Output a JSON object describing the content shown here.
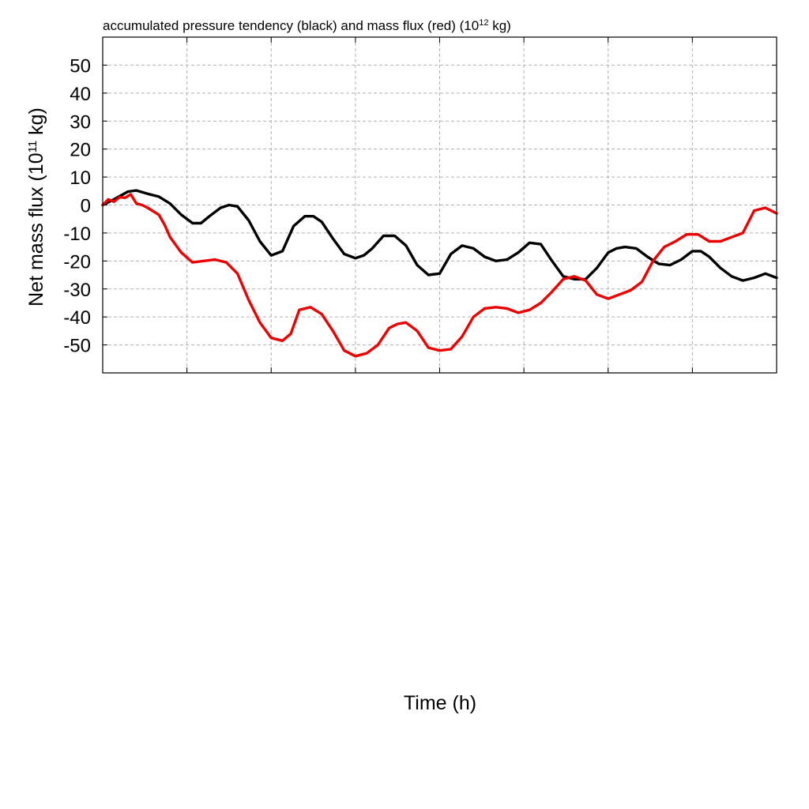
{
  "chart_data": {
    "type": "line",
    "title": {
      "main": "accumulated pressure tendency (black) and mass flux (red) (10",
      "sup": "12",
      "tail": " kg)"
    },
    "ylabel": {
      "main": "Net mass flux (10",
      "sup": "11",
      "tail": " kg)"
    },
    "xlabel": "Time (h)",
    "xlim": [
      0,
      120
    ],
    "ylim": [
      -60,
      60
    ],
    "yticks": [
      50,
      40,
      30,
      20,
      10,
      0,
      -10,
      -20,
      -30,
      -40,
      -50
    ],
    "ytick_labels": [
      "50",
      "40",
      "30",
      "20",
      "10",
      "0",
      "-10",
      "-20",
      "-30",
      "-40",
      "-50"
    ],
    "xgrid": [
      15,
      30,
      45,
      60,
      75,
      90,
      105
    ],
    "grid": true,
    "series": [
      {
        "name": "accumulated pressure tendency",
        "color": "#000000",
        "x": [
          0,
          2,
          4.5,
          6,
          8,
          10,
          12,
          14,
          16,
          17.5,
          19,
          21,
          22.5,
          24,
          26,
          28,
          30,
          32,
          34,
          36,
          37.5,
          39,
          41,
          43,
          45,
          46.5,
          48,
          50,
          52,
          54,
          56,
          58,
          60,
          62,
          64,
          66,
          68,
          70,
          72,
          74,
          76,
          78,
          80,
          82,
          84,
          86,
          88,
          90,
          91.5,
          93,
          95,
          97,
          99,
          101,
          103,
          105,
          106.5,
          108,
          110,
          112,
          114,
          116,
          118,
          120
        ],
        "y": [
          0,
          2,
          4.8,
          5.2,
          4,
          3,
          0.5,
          -3.5,
          -6.5,
          -6.5,
          -4,
          -1,
          0,
          -0.5,
          -5.5,
          -13,
          -18,
          -16.5,
          -7.5,
          -4,
          -4,
          -6,
          -12,
          -17.5,
          -19,
          -18,
          -15.5,
          -11,
          -11,
          -14.5,
          -21.5,
          -25,
          -24.5,
          -17.5,
          -14.5,
          -15.5,
          -18.5,
          -20,
          -19.5,
          -17,
          -13.5,
          -14,
          -20,
          -25.5,
          -26.5,
          -26.5,
          -22.5,
          -17,
          -15.5,
          -15,
          -15.5,
          -18.5,
          -21,
          -21.5,
          -19.5,
          -16.5,
          -16.5,
          -18.5,
          -22.5,
          -25.5,
          -27,
          -26,
          -24.5,
          -26
        ]
      },
      {
        "name": "mass flux",
        "color": "#ee0000",
        "x": [
          0,
          1,
          2,
          3,
          4,
          5,
          6,
          7,
          8,
          10,
          11,
          12,
          14,
          16,
          18,
          20,
          22,
          24,
          26,
          28,
          30,
          32,
          33.5,
          35,
          37,
          39,
          41,
          43,
          45,
          47,
          49,
          51,
          52.5,
          54,
          56,
          58,
          60,
          62,
          64,
          66,
          68,
          70,
          72,
          74,
          76,
          78,
          80,
          82,
          84,
          86,
          88,
          90,
          92,
          94,
          96,
          98,
          100,
          102,
          104,
          106,
          108,
          110,
          112,
          114,
          116,
          118,
          120
        ],
        "y": [
          0,
          2,
          1.2,
          2.8,
          2.6,
          3.8,
          0.5,
          0,
          -1,
          -3.5,
          -7,
          -11.5,
          -17,
          -20.5,
          -20,
          -19.5,
          -20.5,
          -24.5,
          -34,
          -42,
          -47.5,
          -48.5,
          -46,
          -37.5,
          -36.5,
          -39,
          -45,
          -52,
          -54,
          -53,
          -50,
          -44,
          -42.5,
          -42,
          -45,
          -51,
          -52,
          -51.5,
          -47,
          -40,
          -37,
          -36.5,
          -37,
          -38.5,
          -37.5,
          -35,
          -31,
          -26.5,
          -25.5,
          -27,
          -32,
          -33.5,
          -32,
          -30.5,
          -27.5,
          -20,
          -15,
          -13,
          -10.5,
          -10.5,
          -13,
          -13,
          -11.5,
          -10,
          -2,
          -1,
          -3
        ]
      }
    ]
  }
}
